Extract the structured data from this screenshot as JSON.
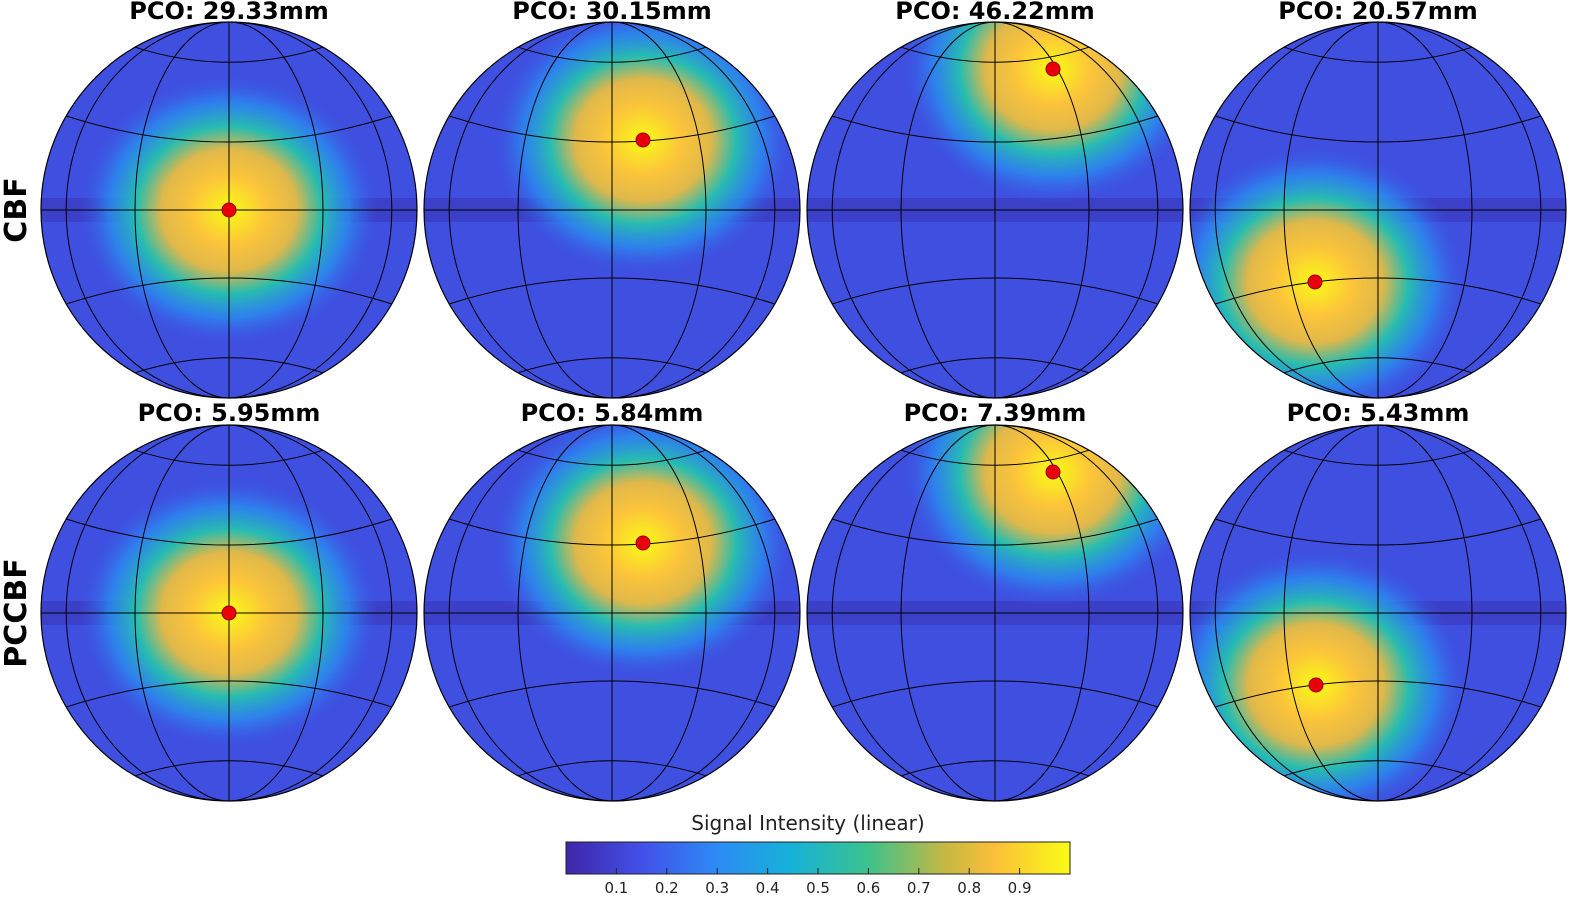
{
  "rows": [
    "CBF",
    "PCCBF"
  ],
  "panels": [
    [
      "PCO: 29.33mm",
      "PCO: 30.15mm",
      "PCO: 46.22mm",
      "PCO: 20.57mm"
    ],
    [
      "PCO: 5.95mm",
      "PCO: 5.84mm",
      "PCO: 7.39mm",
      "PCO: 5.43mm"
    ]
  ],
  "colorbar": {
    "label": "Signal Intensity (linear)",
    "lim": [
      0,
      1
    ],
    "ticks": [
      0.1,
      0.2,
      0.3,
      0.4,
      0.5,
      0.6,
      0.7,
      0.8,
      0.9
    ]
  }
}
